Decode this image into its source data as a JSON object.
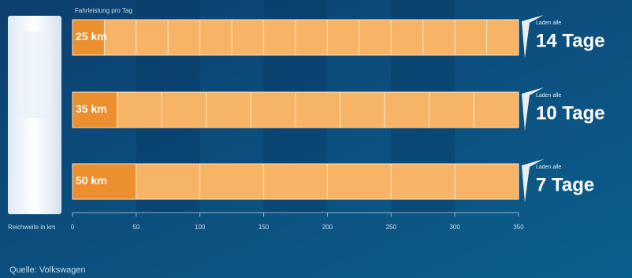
{
  "chart_data": {
    "type": "segmented-bar",
    "title": "Fahrleistung pro Tag",
    "x_label": "Reichweite in km",
    "xlim": [
      0,
      350
    ],
    "xticks": [
      0,
      50,
      100,
      150,
      200,
      250,
      300,
      350
    ],
    "rows": [
      {
        "values": [
          25,
          25,
          25,
          25,
          25,
          25,
          25,
          25,
          25,
          25,
          25,
          25,
          25,
          25
        ],
        "value_label": "25 km",
        "note": "Laden alle",
        "days_label": "14 Tage"
      },
      {
        "values": [
          35,
          35,
          35,
          35,
          35,
          35,
          35,
          35,
          35,
          35
        ],
        "value_label": "35 km",
        "note": "Laden alle",
        "days_label": "10 Tage"
      },
      {
        "values": [
          50,
          50,
          50,
          50,
          50,
          50,
          50
        ],
        "value_label": "50 km",
        "note": "Laden alle",
        "days_label": "7 Tage"
      }
    ],
    "first_color": "#ec8f2e",
    "color": "#f7b466",
    "source": "Quelle: Volkswagen"
  }
}
